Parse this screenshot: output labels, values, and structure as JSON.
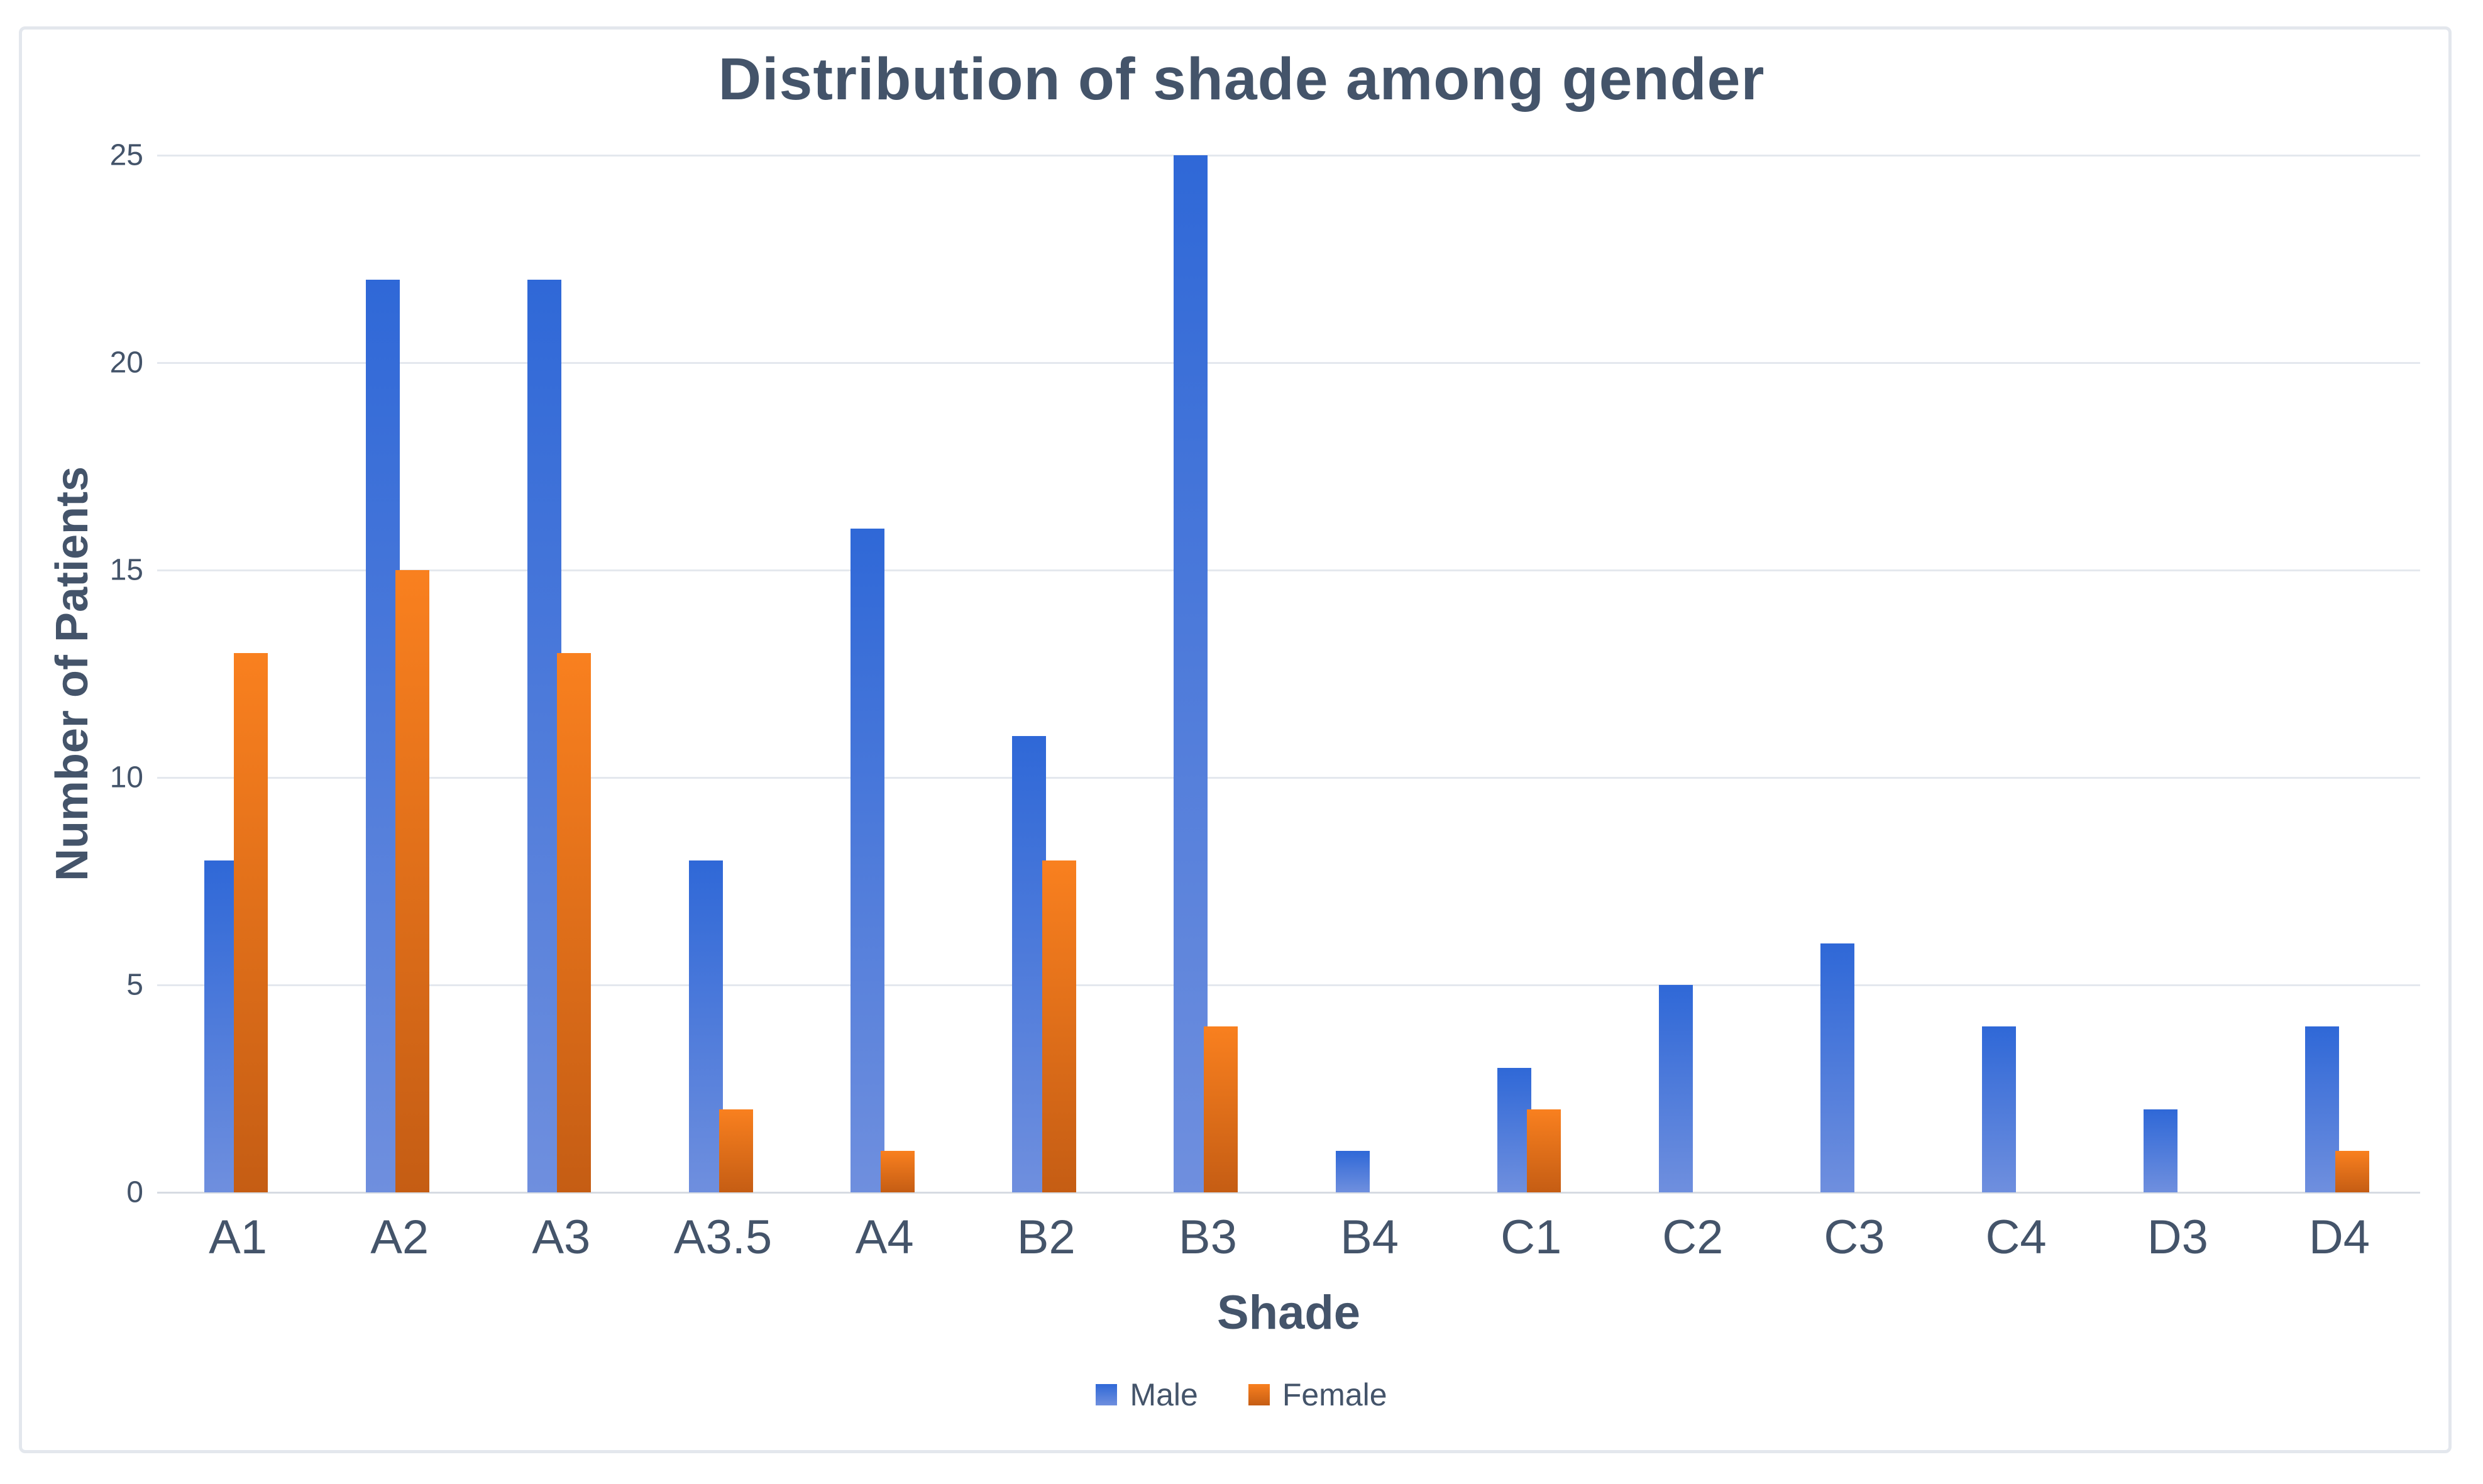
{
  "page": {
    "background_color": "#ffffff",
    "frame_border_color": "#e3e7ed"
  },
  "chart_data": {
    "type": "bar",
    "title": "Distribution of shade among gender",
    "xlabel": "Shade",
    "ylabel": "Number of Patients",
    "categories": [
      "A1",
      "A2",
      "A3",
      "A3.5",
      "A4",
      "B2",
      "B3",
      "B4",
      "C1",
      "C2",
      "C3",
      "C4",
      "D3",
      "D4"
    ],
    "series": [
      {
        "name": "Male",
        "values": [
          8,
          22,
          22,
          8,
          16,
          11,
          25,
          1,
          3,
          5,
          6,
          4,
          2,
          4
        ],
        "color_top": "#2f68d7",
        "color_bottom": "#6f8fde"
      },
      {
        "name": "Female",
        "values": [
          13,
          15,
          13,
          2,
          1,
          8,
          4,
          0,
          2,
          0,
          0,
          0,
          0,
          1
        ],
        "color_top": "#f9801f",
        "color_bottom": "#c55d14"
      }
    ],
    "ylim": [
      0,
      25
    ],
    "y_ticks": [
      0,
      5,
      10,
      15,
      20,
      25
    ],
    "grid": "horizontal",
    "legend_position": "bottom",
    "text_color": "#44546a",
    "gridline_color": "#e4e8ee"
  }
}
